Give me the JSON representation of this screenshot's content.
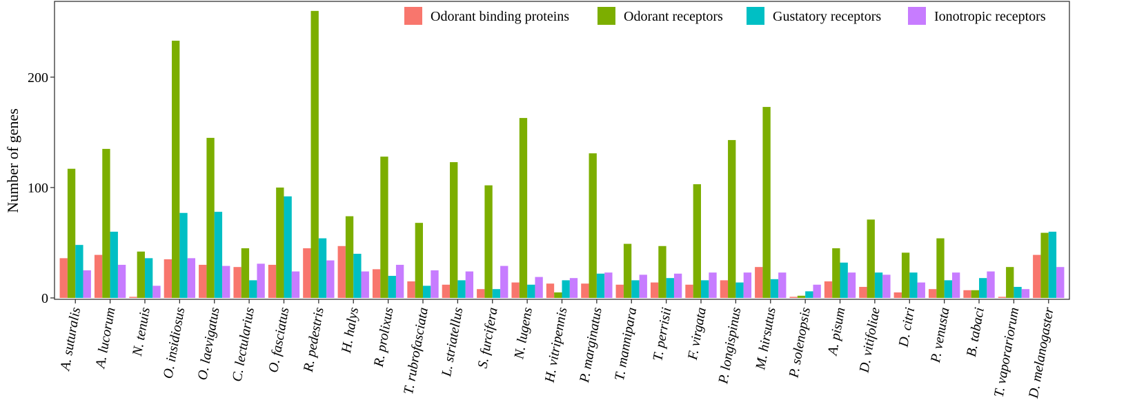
{
  "chart_data": {
    "type": "bar",
    "title": "",
    "xlabel": "",
    "ylabel": "Number of genes",
    "ylim": [
      0,
      268
    ],
    "yticks": [
      0,
      100,
      200
    ],
    "grid": false,
    "legend_position": "top-right",
    "categories": [
      "A. suturalis",
      "A. lucorum",
      "N. tenuis",
      "O. insidiosus",
      "O. laevigatus",
      "C. lectularius",
      "O. fasciatus",
      "R. pedestris",
      "H. halys",
      "R. prolixus",
      "T. rubrofasciata",
      "L. striatellus",
      "S. furcifera",
      "N. lugens",
      "H. vitripennis",
      "P. marginatus",
      "T. mannipara",
      "T. perrisii",
      "F. virgata",
      "P. longispinus",
      "M. hirsutus",
      "P. solenopsis",
      "A. pisum",
      "D. vitifoliae",
      "D. citri",
      "P. venusta",
      "B. tabaci",
      "T. vaporariorum",
      "D. melanogaster"
    ],
    "series": [
      {
        "name": "Odorant binding proteins",
        "color": "#F8766D",
        "values": [
          36,
          39,
          1,
          35,
          30,
          28,
          30,
          45,
          47,
          26,
          15,
          12,
          8,
          14,
          13,
          13,
          12,
          14,
          12,
          16,
          28,
          1,
          15,
          10,
          5,
          8,
          7,
          1,
          39
        ]
      },
      {
        "name": "Odorant receptors",
        "color": "#7CAE00",
        "values": [
          117,
          135,
          42,
          233,
          145,
          45,
          100,
          260,
          74,
          128,
          68,
          123,
          102,
          163,
          5,
          131,
          49,
          47,
          103,
          143,
          173,
          2,
          45,
          71,
          41,
          54,
          7,
          28,
          59
        ]
      },
      {
        "name": "Gustatory receptors",
        "color": "#00BFC4",
        "values": [
          48,
          60,
          36,
          77,
          78,
          16,
          92,
          54,
          40,
          20,
          11,
          16,
          8,
          12,
          16,
          22,
          16,
          18,
          16,
          14,
          17,
          6,
          32,
          23,
          23,
          16,
          18,
          10,
          60
        ]
      },
      {
        "name": "Ionotropic receptors",
        "color": "#C77CFF",
        "values": [
          25,
          30,
          11,
          36,
          29,
          31,
          24,
          34,
          24,
          30,
          25,
          24,
          29,
          19,
          18,
          23,
          21,
          22,
          23,
          23,
          23,
          12,
          23,
          21,
          14,
          23,
          24,
          8,
          28
        ]
      }
    ]
  }
}
